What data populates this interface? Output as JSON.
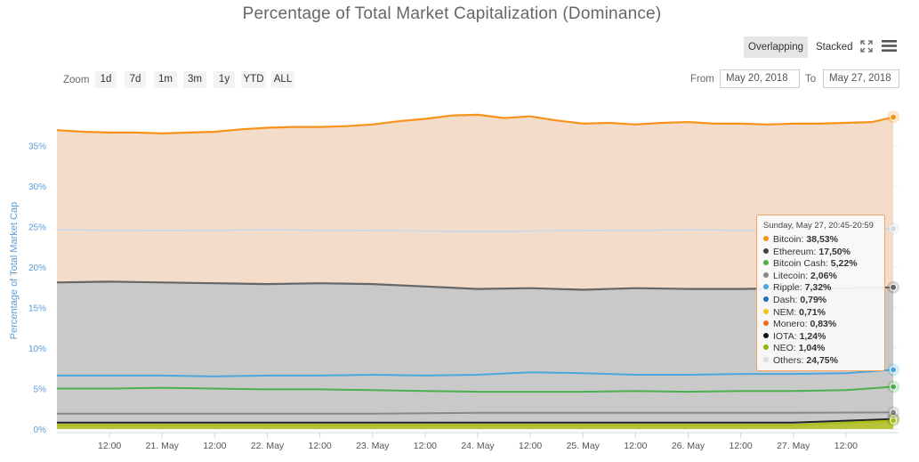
{
  "chart_data": {
    "type": "area",
    "title": "Percentage of Total Market Capitalization (Dominance)",
    "ylabel": "Percentage of Total Market Cap",
    "ylim": [
      0,
      37.5
    ],
    "yticks": [
      "0%",
      "5%",
      "10%",
      "15%",
      "20%",
      "25%",
      "30%",
      "35%"
    ],
    "ytick_values": [
      0,
      5,
      10,
      15,
      20,
      25,
      30,
      35
    ],
    "x_range": [
      0,
      8.0
    ],
    "xticks": [
      {
        "x": 0.5,
        "label": "12:00"
      },
      {
        "x": 1.0,
        "label": "21. May"
      },
      {
        "x": 1.5,
        "label": "12:00"
      },
      {
        "x": 2.0,
        "label": "22. May"
      },
      {
        "x": 2.5,
        "label": "12:00"
      },
      {
        "x": 3.0,
        "label": "23. May"
      },
      {
        "x": 3.5,
        "label": "12:00"
      },
      {
        "x": 4.0,
        "label": "24. May"
      },
      {
        "x": 4.5,
        "label": "12:00"
      },
      {
        "x": 5.0,
        "label": "25. May"
      },
      {
        "x": 5.5,
        "label": "12:00"
      },
      {
        "x": 6.0,
        "label": "26. May"
      },
      {
        "x": 6.5,
        "label": "12:00"
      },
      {
        "x": 7.0,
        "label": "27. May"
      },
      {
        "x": 7.5,
        "label": "12:00"
      }
    ],
    "grid": true,
    "series": [
      {
        "name": "Bitcoin",
        "color": "#f7931a",
        "fill": "#f4dccb",
        "x": [
          0,
          0.25,
          0.5,
          0.75,
          1.0,
          1.25,
          1.5,
          1.75,
          2.0,
          2.25,
          2.5,
          2.75,
          3.0,
          3.25,
          3.5,
          3.75,
          4.0,
          4.25,
          4.5,
          4.75,
          5.0,
          5.25,
          5.5,
          5.75,
          6.0,
          6.25,
          6.5,
          6.75,
          7.0,
          7.25,
          7.5,
          7.75,
          7.95
        ],
        "y": [
          36.9,
          36.7,
          36.6,
          36.6,
          36.5,
          36.6,
          36.7,
          37.0,
          37.2,
          37.3,
          37.3,
          37.4,
          37.6,
          38.0,
          38.3,
          38.7,
          38.8,
          38.4,
          38.6,
          38.1,
          37.7,
          37.8,
          37.6,
          37.8,
          37.9,
          37.7,
          37.7,
          37.6,
          37.7,
          37.7,
          37.8,
          37.9,
          38.5
        ]
      },
      {
        "name": "Others",
        "color": "#cfd8e0",
        "fill": "none",
        "x": [
          0,
          1,
          2,
          3,
          4,
          5,
          6,
          7,
          7.95
        ],
        "y": [
          24.6,
          24.5,
          24.6,
          24.5,
          24.4,
          24.5,
          24.6,
          24.5,
          24.75
        ]
      },
      {
        "name": "Ethereum",
        "color": "#666666",
        "fill": "#c9c9c9",
        "x": [
          0,
          0.5,
          1.0,
          1.5,
          2.0,
          2.5,
          3.0,
          3.5,
          4.0,
          4.5,
          5.0,
          5.5,
          6.0,
          6.5,
          7.0,
          7.5,
          7.95
        ],
        "y": [
          18.1,
          18.2,
          18.1,
          18.0,
          17.9,
          18.0,
          17.9,
          17.6,
          17.3,
          17.4,
          17.2,
          17.4,
          17.3,
          17.3,
          17.4,
          17.4,
          17.5
        ]
      },
      {
        "name": "Ripple",
        "color": "#4ba6dd",
        "fill": "none",
        "x": [
          0,
          0.5,
          1.0,
          1.5,
          2.0,
          2.5,
          3.0,
          3.5,
          4.0,
          4.5,
          5.0,
          5.5,
          6.0,
          6.5,
          7.0,
          7.5,
          7.95
        ],
        "y": [
          6.6,
          6.6,
          6.6,
          6.5,
          6.6,
          6.6,
          6.7,
          6.6,
          6.7,
          7.0,
          6.9,
          6.7,
          6.7,
          6.8,
          6.8,
          6.9,
          7.32
        ]
      },
      {
        "name": "Bitcoin Cash",
        "color": "#4caf50",
        "fill": "none",
        "x": [
          0,
          0.5,
          1.0,
          1.5,
          2.0,
          2.5,
          3.0,
          3.5,
          4.0,
          4.5,
          5.0,
          5.5,
          6.0,
          6.5,
          7.0,
          7.5,
          7.95
        ],
        "y": [
          5.0,
          5.0,
          5.1,
          5.0,
          4.9,
          4.9,
          4.8,
          4.7,
          4.6,
          4.6,
          4.6,
          4.7,
          4.6,
          4.7,
          4.7,
          4.8,
          5.22
        ]
      },
      {
        "name": "Litecoin",
        "color": "#888888",
        "fill": "none",
        "x": [
          0,
          1,
          2,
          3,
          4,
          5,
          6,
          7,
          7.95
        ],
        "y": [
          1.9,
          1.9,
          1.9,
          1.9,
          2.0,
          2.0,
          2.0,
          2.0,
          2.06
        ]
      },
      {
        "name": "IOTA",
        "color": "#222222",
        "fill": "none",
        "x": [
          0,
          1,
          2,
          3,
          4,
          5,
          6,
          7,
          7.95
        ],
        "y": [
          0.8,
          0.8,
          0.8,
          0.8,
          0.8,
          0.8,
          0.8,
          0.8,
          1.24
        ]
      },
      {
        "name": "NEO",
        "color": "#a9c00f",
        "fill": "#b8c23a",
        "x": [
          0,
          1,
          2,
          3,
          4,
          5,
          6,
          7,
          7.95
        ],
        "y": [
          0.5,
          0.5,
          0.5,
          0.5,
          0.5,
          0.5,
          0.5,
          0.5,
          1.04
        ]
      }
    ]
  },
  "controls": {
    "overlapping": "Overlapping",
    "stacked": "Stacked",
    "zoom_label": "Zoom",
    "zoom_buttons": [
      "1d",
      "7d",
      "1m",
      "3m",
      "1y",
      "YTD",
      "ALL"
    ],
    "from_label": "From",
    "from_value": "May 20, 2018",
    "to_label": "To",
    "to_value": "May 27, 2018"
  },
  "tooltip": {
    "header": "Sunday, May 27, 20:45-20:59",
    "rows": [
      {
        "name": "Bitcoin",
        "value": "38,53%",
        "color": "#f7931a"
      },
      {
        "name": "Ethereum",
        "value": "17,50%",
        "color": "#444444"
      },
      {
        "name": "Bitcoin Cash",
        "value": "5,22%",
        "color": "#4caf50"
      },
      {
        "name": "Litecoin",
        "value": "2,06%",
        "color": "#888888"
      },
      {
        "name": "Ripple",
        "value": "7,32%",
        "color": "#4ba6dd"
      },
      {
        "name": "Dash",
        "value": "0,79%",
        "color": "#1c75bc"
      },
      {
        "name": "NEM",
        "value": "0,71%",
        "color": "#f2c21a"
      },
      {
        "name": "Monero",
        "value": "0,83%",
        "color": "#f26822"
      },
      {
        "name": "IOTA",
        "value": "1,24%",
        "color": "#111111"
      },
      {
        "name": "NEO",
        "value": "1,04%",
        "color": "#8cb80f"
      },
      {
        "name": "Others",
        "value": "24,75%",
        "color": "#dddddd"
      }
    ]
  },
  "icons": {
    "fullscreen": "fullscreen-icon",
    "menu": "hamburger-menu-icon"
  }
}
